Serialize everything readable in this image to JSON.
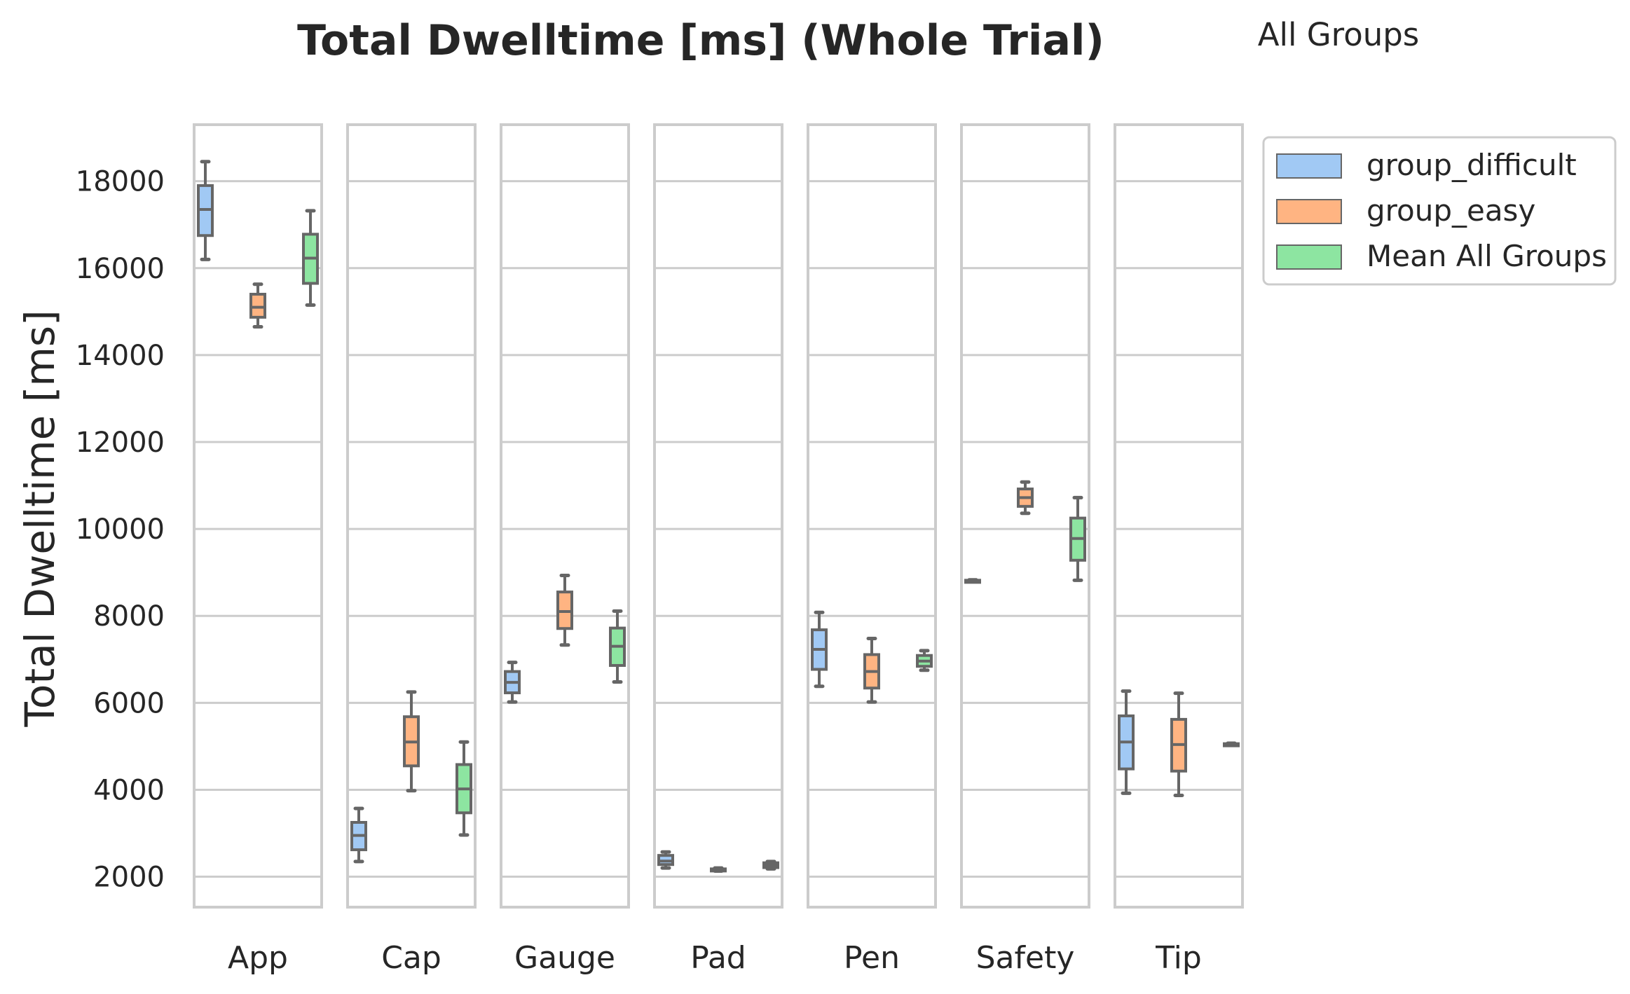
{
  "chart_data": {
    "type": "box",
    "title": "Total Dwelltime [ms] (Whole Trial)",
    "subtitle": "All Groups",
    "ylabel": "Total Dwelltime [ms]",
    "ylim": [
      1300,
      19300
    ],
    "yticks": [
      2000,
      4000,
      6000,
      8000,
      10000,
      12000,
      14000,
      16000,
      18000
    ],
    "grid": true,
    "legend_position": "upper-right-outside",
    "categories": [
      "App",
      "Cap",
      "Gauge",
      "Pad",
      "Pen",
      "Safety",
      "Tip"
    ],
    "series": [
      {
        "name": "group_difficult",
        "color": "#a1c9f4",
        "boxes": [
          {
            "whislo": 16200,
            "q1": 16750,
            "med": 17350,
            "q3": 17900,
            "whishi": 18450
          },
          {
            "whislo": 2350,
            "q1": 2620,
            "med": 2950,
            "q3": 3250,
            "whishi": 3570
          },
          {
            "whislo": 6020,
            "q1": 6230,
            "med": 6470,
            "q3": 6720,
            "whishi": 6930
          },
          {
            "whislo": 2200,
            "q1": 2280,
            "med": 2360,
            "q3": 2490,
            "whishi": 2570
          },
          {
            "whislo": 6380,
            "q1": 6770,
            "med": 7230,
            "q3": 7680,
            "whishi": 8080
          },
          {
            "whislo": 8790,
            "q1": 8800,
            "med": 8810,
            "q3": 8820,
            "whishi": 8830
          },
          {
            "whislo": 3920,
            "q1": 4480,
            "med": 5100,
            "q3": 5700,
            "whishi": 6270
          }
        ]
      },
      {
        "name": "group_easy",
        "color": "#ffb482",
        "boxes": [
          {
            "whislo": 14650,
            "q1": 14870,
            "med": 15100,
            "q3": 15400,
            "whishi": 15630
          },
          {
            "whislo": 3980,
            "q1": 4550,
            "med": 5100,
            "q3": 5680,
            "whishi": 6250
          },
          {
            "whislo": 7330,
            "q1": 7710,
            "med": 8100,
            "q3": 8550,
            "whishi": 8930
          },
          {
            "whislo": 2130,
            "q1": 2140,
            "med": 2160,
            "q3": 2180,
            "whishi": 2200
          },
          {
            "whislo": 6020,
            "q1": 6340,
            "med": 6720,
            "q3": 7110,
            "whishi": 7480
          },
          {
            "whislo": 10360,
            "q1": 10520,
            "med": 10720,
            "q3": 10920,
            "whishi": 11080
          },
          {
            "whislo": 3870,
            "q1": 4430,
            "med": 5040,
            "q3": 5620,
            "whishi": 6220
          }
        ]
      },
      {
        "name": "Mean All Groups",
        "color": "#8de5a1",
        "boxes": [
          {
            "whislo": 15150,
            "q1": 15650,
            "med": 16230,
            "q3": 16780,
            "whishi": 17320
          },
          {
            "whislo": 2960,
            "q1": 3470,
            "med": 4020,
            "q3": 4580,
            "whishi": 5100
          },
          {
            "whislo": 6480,
            "q1": 6860,
            "med": 7300,
            "q3": 7720,
            "whishi": 8110
          },
          {
            "whislo": 2180,
            "q1": 2210,
            "med": 2260,
            "q3": 2320,
            "whishi": 2350
          },
          {
            "whislo": 6750,
            "q1": 6840,
            "med": 6960,
            "q3": 7090,
            "whishi": 7200
          },
          {
            "whislo": 8820,
            "q1": 9280,
            "med": 9780,
            "q3": 10250,
            "whishi": 10720
          },
          {
            "whislo": 5030,
            "q1": 5040,
            "med": 5050,
            "q3": 5060,
            "whishi": 5070
          }
        ]
      }
    ]
  }
}
